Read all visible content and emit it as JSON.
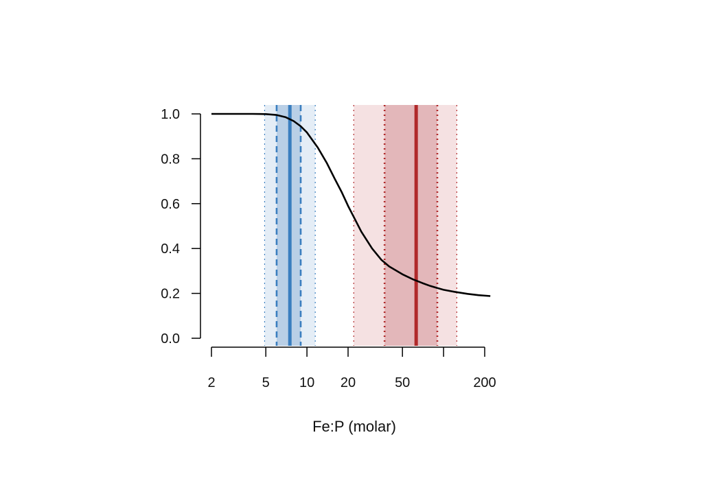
{
  "chart_data": {
    "type": "line",
    "title": "",
    "xlabel": "Fe:P (molar)",
    "ylabel": "",
    "x_scale": "log",
    "xlim": [
      2,
      200
    ],
    "ylim": [
      0,
      1
    ],
    "x_ticks": [
      2,
      5,
      10,
      20,
      50,
      200
    ],
    "x_tick_labels": [
      "2",
      "5",
      "10",
      "20",
      "50",
      "200"
    ],
    "y_ticks": [
      0.0,
      0.2,
      0.4,
      0.6,
      0.8,
      1.0
    ],
    "y_tick_labels": [
      "0.0",
      "0.2",
      "0.4",
      "0.6",
      "0.8",
      "1.0"
    ],
    "grid": false,
    "series": [
      {
        "color": "#000000",
        "x": [
          2,
          3,
          4,
          5,
          6,
          7,
          8,
          9,
          10,
          12,
          14,
          16,
          18,
          20,
          25,
          30,
          35,
          40,
          50,
          60,
          70,
          80,
          100,
          120,
          150,
          180,
          220
        ],
        "y": [
          1.0,
          1.0,
          1.0,
          0.999,
          0.995,
          0.985,
          0.968,
          0.945,
          0.917,
          0.85,
          0.78,
          0.71,
          0.65,
          0.59,
          0.475,
          0.4,
          0.35,
          0.32,
          0.285,
          0.262,
          0.246,
          0.233,
          0.216,
          0.207,
          0.198,
          0.192,
          0.188
        ]
      }
    ],
    "bands": [
      {
        "group": "blue",
        "color": "#3a7ebf",
        "center": 7.5,
        "inner_range": [
          6.0,
          9.0
        ],
        "outer_range": [
          4.9,
          11.5
        ],
        "inner_fill": "#b9cfe6",
        "outer_fill": "#e4edf6",
        "center_style": "solid",
        "inner_style": "dashed",
        "outer_style": "dotted"
      },
      {
        "group": "red",
        "color": "#b0292a",
        "center": 63,
        "inner_range": [
          37,
          90
        ],
        "outer_range": [
          22,
          125
        ],
        "inner_fill": "#e3b7ba",
        "outer_fill": "#f5e1e2",
        "center_style": "solid",
        "inner_style": "dotted",
        "outer_style": "dotted"
      }
    ]
  }
}
